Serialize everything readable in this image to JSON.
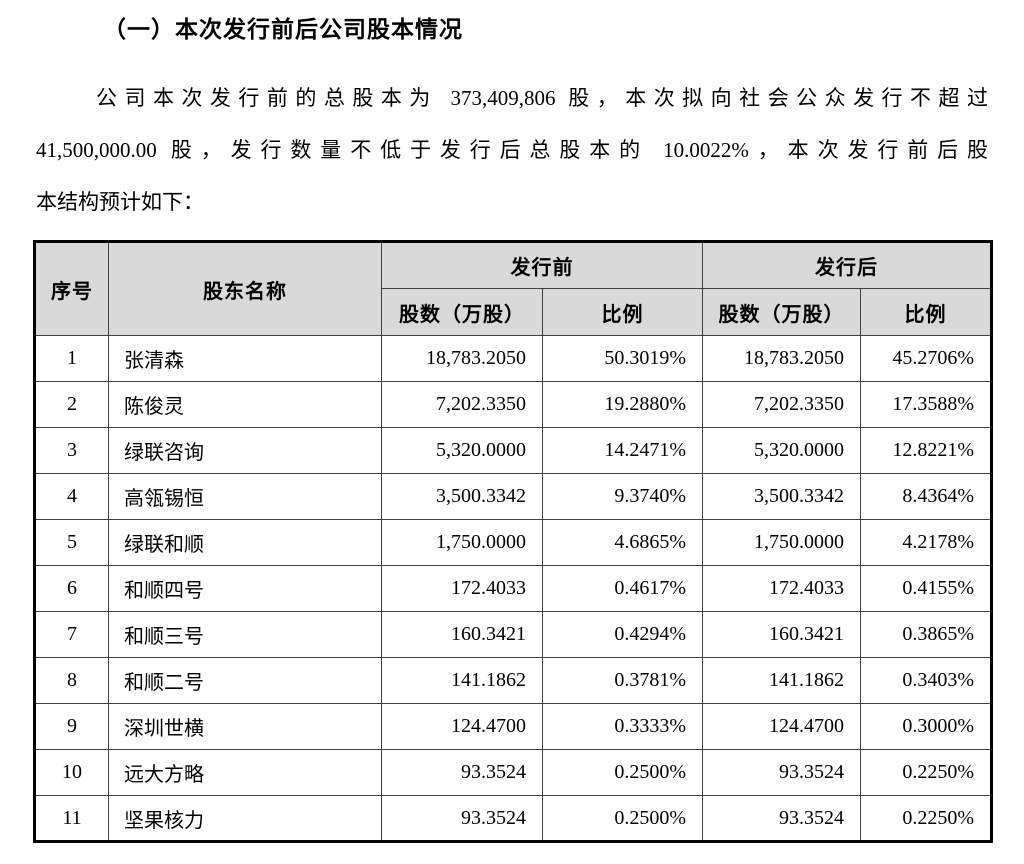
{
  "page": {
    "heading": "（一）本次发行前后公司股本情况",
    "paragraph_lines": [
      "公司本次发行前的总股本为 373,409,806 股，本次拟向社会公众发行不超过",
      "41,500,000.00 股，发行数量不低于发行后总股本的 10.0022%，本次发行前后股",
      "本结构预计如下："
    ]
  },
  "table": {
    "colors": {
      "header_bg": "#d9d9d9",
      "border": "#000000"
    },
    "headers": {
      "col_no": "序号",
      "col_name": "股东名称",
      "group_pre": "发行前",
      "group_post": "发行后",
      "col_shares": "股数（万股）",
      "col_ratio": "比例"
    },
    "rows": [
      {
        "no": "1",
        "name": "张清森",
        "pre_shares": "18,783.2050",
        "pre_ratio": "50.3019%",
        "post_shares": "18,783.2050",
        "post_ratio": "45.2706%"
      },
      {
        "no": "2",
        "name": "陈俊灵",
        "pre_shares": "7,202.3350",
        "pre_ratio": "19.2880%",
        "post_shares": "7,202.3350",
        "post_ratio": "17.3588%"
      },
      {
        "no": "3",
        "name": "绿联咨询",
        "pre_shares": "5,320.0000",
        "pre_ratio": "14.2471%",
        "post_shares": "5,320.0000",
        "post_ratio": "12.8221%"
      },
      {
        "no": "4",
        "name": "高瓴锡恒",
        "pre_shares": "3,500.3342",
        "pre_ratio": "9.3740%",
        "post_shares": "3,500.3342",
        "post_ratio": "8.4364%"
      },
      {
        "no": "5",
        "name": "绿联和顺",
        "pre_shares": "1,750.0000",
        "pre_ratio": "4.6865%",
        "post_shares": "1,750.0000",
        "post_ratio": "4.2178%"
      },
      {
        "no": "6",
        "name": "和顺四号",
        "pre_shares": "172.4033",
        "pre_ratio": "0.4617%",
        "post_shares": "172.4033",
        "post_ratio": "0.4155%"
      },
      {
        "no": "7",
        "name": "和顺三号",
        "pre_shares": "160.3421",
        "pre_ratio": "0.4294%",
        "post_shares": "160.3421",
        "post_ratio": "0.3865%"
      },
      {
        "no": "8",
        "name": "和顺二号",
        "pre_shares": "141.1862",
        "pre_ratio": "0.3781%",
        "post_shares": "141.1862",
        "post_ratio": "0.3403%"
      },
      {
        "no": "9",
        "name": "深圳世横",
        "pre_shares": "124.4700",
        "pre_ratio": "0.3333%",
        "post_shares": "124.4700",
        "post_ratio": "0.3000%"
      },
      {
        "no": "10",
        "name": "远大方略",
        "pre_shares": "93.3524",
        "pre_ratio": "0.2500%",
        "post_shares": "93.3524",
        "post_ratio": "0.2250%"
      },
      {
        "no": "11",
        "name": "坚果核力",
        "pre_shares": "93.3524",
        "pre_ratio": "0.2500%",
        "post_shares": "93.3524",
        "post_ratio": "0.2250%"
      }
    ]
  }
}
